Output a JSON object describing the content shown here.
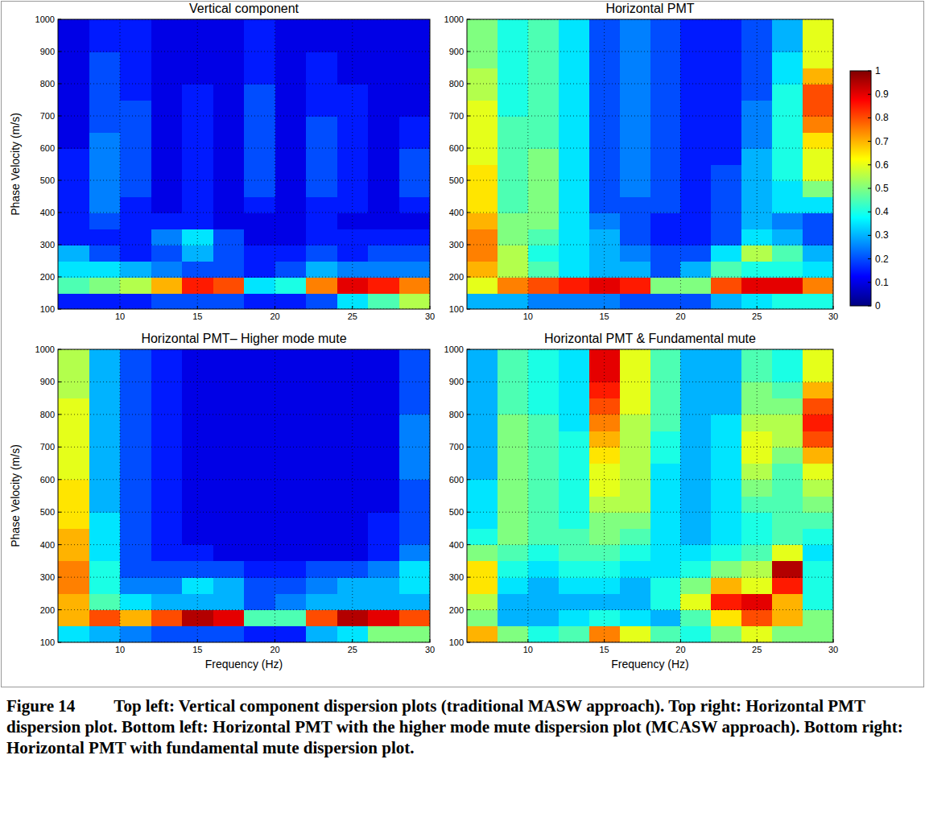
{
  "chart_data": [
    {
      "type": "heatmap",
      "title": "Vertical component",
      "y_label": "Phase Velocity (m/s)",
      "xlim": [
        6,
        30
      ],
      "ylim": [
        100,
        1000
      ],
      "xticks": [
        10,
        15,
        20,
        25,
        30
      ],
      "yticks": [
        100,
        200,
        300,
        400,
        500,
        600,
        700,
        800,
        900,
        1000
      ],
      "grid": true,
      "x_bins": [
        6,
        8,
        10,
        12,
        14,
        16,
        18,
        20,
        22,
        24,
        26,
        28,
        30
      ],
      "y_bins": [
        100,
        150,
        200,
        250,
        300,
        350,
        400,
        450,
        500,
        550,
        600,
        650,
        700,
        750,
        800,
        850,
        900,
        950,
        1000
      ],
      "cells": [
        [
          0.15,
          0.15,
          0.15,
          0.2,
          0.2,
          0.2,
          0.15,
          0.15,
          0.2,
          0.35,
          0.45,
          0.55
        ],
        [
          0.45,
          0.5,
          0.55,
          0.7,
          0.85,
          0.8,
          0.35,
          0.4,
          0.75,
          0.9,
          0.85,
          0.75
        ],
        [
          0.35,
          0.35,
          0.3,
          0.25,
          0.2,
          0.2,
          0.15,
          0.2,
          0.3,
          0.25,
          0.25,
          0.25
        ],
        [
          0.3,
          0.2,
          0.15,
          0.2,
          0.3,
          0.2,
          0.15,
          0.15,
          0.2,
          0.15,
          0.2,
          0.2
        ],
        [
          0.15,
          0.15,
          0.15,
          0.25,
          0.35,
          0.2,
          0.1,
          0.1,
          0.15,
          0.15,
          0.15,
          0.15
        ],
        [
          0.15,
          0.2,
          0.15,
          0.15,
          0.15,
          0.1,
          0.1,
          0.1,
          0.15,
          0.1,
          0.1,
          0.1
        ],
        [
          0.15,
          0.25,
          0.15,
          0.1,
          0.15,
          0.1,
          0.15,
          0.1,
          0.15,
          0.15,
          0.1,
          0.15
        ],
        [
          0.15,
          0.25,
          0.2,
          0.1,
          0.15,
          0.1,
          0.2,
          0.1,
          0.2,
          0.15,
          0.1,
          0.2
        ],
        [
          0.15,
          0.25,
          0.2,
          0.1,
          0.15,
          0.1,
          0.2,
          0.1,
          0.2,
          0.15,
          0.1,
          0.2
        ],
        [
          0.15,
          0.25,
          0.2,
          0.1,
          0.15,
          0.1,
          0.2,
          0.1,
          0.2,
          0.15,
          0.1,
          0.2
        ],
        [
          0.1,
          0.25,
          0.2,
          0.1,
          0.15,
          0.1,
          0.2,
          0.1,
          0.2,
          0.15,
          0.1,
          0.15
        ],
        [
          0.1,
          0.2,
          0.2,
          0.1,
          0.15,
          0.1,
          0.2,
          0.1,
          0.2,
          0.15,
          0.1,
          0.15
        ],
        [
          0.1,
          0.2,
          0.2,
          0.1,
          0.15,
          0.1,
          0.2,
          0.1,
          0.15,
          0.15,
          0.1,
          0.1
        ],
        [
          0.1,
          0.2,
          0.15,
          0.1,
          0.15,
          0.1,
          0.2,
          0.1,
          0.15,
          0.15,
          0.1,
          0.1
        ],
        [
          0.1,
          0.2,
          0.15,
          0.1,
          0.1,
          0.1,
          0.15,
          0.1,
          0.15,
          0.1,
          0.1,
          0.1
        ],
        [
          0.1,
          0.2,
          0.15,
          0.1,
          0.1,
          0.1,
          0.15,
          0.1,
          0.15,
          0.1,
          0.1,
          0.1
        ],
        [
          0.1,
          0.15,
          0.15,
          0.1,
          0.1,
          0.1,
          0.15,
          0.1,
          0.1,
          0.1,
          0.1,
          0.1
        ],
        [
          0.1,
          0.15,
          0.15,
          0.1,
          0.1,
          0.1,
          0.15,
          0.1,
          0.1,
          0.1,
          0.1,
          0.1
        ]
      ]
    },
    {
      "type": "heatmap",
      "title": "Horizontal PMT",
      "xlim": [
        6,
        30
      ],
      "ylim": [
        100,
        1000
      ],
      "xticks": [
        10,
        15,
        20,
        25,
        30
      ],
      "yticks": [
        100,
        200,
        300,
        400,
        500,
        600,
        700,
        800,
        900,
        1000
      ],
      "grid": true,
      "x_bins": [
        6,
        8,
        10,
        12,
        14,
        16,
        18,
        20,
        22,
        24,
        26,
        28,
        30
      ],
      "y_bins": [
        100,
        150,
        200,
        250,
        300,
        350,
        400,
        450,
        500,
        550,
        600,
        650,
        700,
        750,
        800,
        850,
        900,
        950,
        1000
      ],
      "colorbar": {
        "range": [
          0,
          1
        ],
        "ticks": [
          0,
          0.1,
          0.2,
          0.3,
          0.4,
          0.5,
          0.6,
          0.7,
          0.8,
          0.9,
          1
        ]
      },
      "cells": [
        [
          0.3,
          0.3,
          0.25,
          0.25,
          0.25,
          0.2,
          0.2,
          0.2,
          0.3,
          0.35,
          0.4,
          0.4
        ],
        [
          0.6,
          0.75,
          0.8,
          0.85,
          0.9,
          0.85,
          0.5,
          0.5,
          0.8,
          0.9,
          0.9,
          0.75
        ],
        [
          0.7,
          0.55,
          0.45,
          0.35,
          0.3,
          0.3,
          0.2,
          0.3,
          0.45,
          0.4,
          0.4,
          0.35
        ],
        [
          0.75,
          0.55,
          0.4,
          0.35,
          0.3,
          0.25,
          0.2,
          0.2,
          0.35,
          0.55,
          0.45,
          0.3
        ],
        [
          0.75,
          0.5,
          0.45,
          0.35,
          0.3,
          0.2,
          0.15,
          0.15,
          0.2,
          0.35,
          0.3,
          0.2
        ],
        [
          0.7,
          0.5,
          0.5,
          0.35,
          0.25,
          0.2,
          0.15,
          0.15,
          0.2,
          0.3,
          0.25,
          0.2
        ],
        [
          0.65,
          0.45,
          0.5,
          0.35,
          0.2,
          0.2,
          0.2,
          0.15,
          0.2,
          0.3,
          0.35,
          0.35
        ],
        [
          0.65,
          0.45,
          0.5,
          0.35,
          0.2,
          0.25,
          0.2,
          0.15,
          0.2,
          0.3,
          0.35,
          0.5
        ],
        [
          0.65,
          0.45,
          0.5,
          0.35,
          0.2,
          0.25,
          0.2,
          0.15,
          0.2,
          0.3,
          0.4,
          0.6
        ],
        [
          0.6,
          0.45,
          0.5,
          0.35,
          0.2,
          0.25,
          0.2,
          0.15,
          0.15,
          0.3,
          0.4,
          0.6
        ],
        [
          0.6,
          0.45,
          0.45,
          0.35,
          0.2,
          0.25,
          0.2,
          0.15,
          0.15,
          0.25,
          0.4,
          0.65
        ],
        [
          0.6,
          0.45,
          0.45,
          0.35,
          0.2,
          0.25,
          0.2,
          0.15,
          0.15,
          0.25,
          0.4,
          0.75
        ],
        [
          0.6,
          0.4,
          0.45,
          0.35,
          0.2,
          0.25,
          0.2,
          0.15,
          0.15,
          0.25,
          0.4,
          0.8
        ],
        [
          0.55,
          0.4,
          0.45,
          0.35,
          0.2,
          0.25,
          0.2,
          0.15,
          0.15,
          0.2,
          0.4,
          0.8
        ],
        [
          0.55,
          0.4,
          0.45,
          0.35,
          0.2,
          0.25,
          0.2,
          0.15,
          0.15,
          0.2,
          0.35,
          0.7
        ],
        [
          0.5,
          0.4,
          0.45,
          0.35,
          0.2,
          0.25,
          0.2,
          0.15,
          0.15,
          0.2,
          0.35,
          0.6
        ],
        [
          0.5,
          0.4,
          0.45,
          0.35,
          0.2,
          0.25,
          0.2,
          0.15,
          0.15,
          0.2,
          0.3,
          0.6
        ],
        [
          0.5,
          0.4,
          0.45,
          0.35,
          0.2,
          0.25,
          0.2,
          0.15,
          0.15,
          0.2,
          0.3,
          0.6
        ]
      ]
    },
    {
      "type": "heatmap",
      "title": "Horizontal PMT– Higher mode mute",
      "x_label": "Frequency (Hz)",
      "y_label": "Phase Velocity (m/s)",
      "xlim": [
        6,
        30
      ],
      "ylim": [
        100,
        1000
      ],
      "xticks": [
        10,
        15,
        20,
        25,
        30
      ],
      "yticks": [
        100,
        200,
        300,
        400,
        500,
        600,
        700,
        800,
        900,
        1000
      ],
      "grid": true,
      "x_bins": [
        6,
        8,
        10,
        12,
        14,
        16,
        18,
        20,
        22,
        24,
        26,
        28,
        30
      ],
      "y_bins": [
        100,
        150,
        200,
        250,
        300,
        350,
        400,
        450,
        500,
        550,
        600,
        650,
        700,
        750,
        800,
        850,
        900,
        950,
        1000
      ],
      "cells": [
        [
          0.35,
          0.3,
          0.25,
          0.2,
          0.2,
          0.2,
          0.15,
          0.15,
          0.3,
          0.35,
          0.5,
          0.5
        ],
        [
          0.7,
          0.8,
          0.7,
          0.8,
          0.95,
          0.9,
          0.45,
          0.45,
          0.8,
          0.95,
          0.9,
          0.8
        ],
        [
          0.7,
          0.45,
          0.35,
          0.3,
          0.3,
          0.3,
          0.2,
          0.25,
          0.3,
          0.3,
          0.3,
          0.3
        ],
        [
          0.75,
          0.4,
          0.25,
          0.25,
          0.35,
          0.3,
          0.2,
          0.2,
          0.25,
          0.3,
          0.3,
          0.35
        ],
        [
          0.75,
          0.4,
          0.2,
          0.2,
          0.2,
          0.2,
          0.15,
          0.15,
          0.2,
          0.2,
          0.25,
          0.35
        ],
        [
          0.7,
          0.35,
          0.2,
          0.15,
          0.15,
          0.1,
          0.1,
          0.1,
          0.1,
          0.1,
          0.15,
          0.25
        ],
        [
          0.7,
          0.35,
          0.2,
          0.15,
          0.1,
          0.1,
          0.1,
          0.1,
          0.1,
          0.1,
          0.15,
          0.2
        ],
        [
          0.65,
          0.35,
          0.2,
          0.15,
          0.1,
          0.1,
          0.1,
          0.1,
          0.1,
          0.1,
          0.15,
          0.2
        ],
        [
          0.65,
          0.3,
          0.2,
          0.15,
          0.1,
          0.1,
          0.1,
          0.1,
          0.1,
          0.1,
          0.1,
          0.2
        ],
        [
          0.65,
          0.3,
          0.2,
          0.15,
          0.1,
          0.1,
          0.1,
          0.1,
          0.1,
          0.1,
          0.1,
          0.2
        ],
        [
          0.6,
          0.3,
          0.2,
          0.15,
          0.1,
          0.1,
          0.1,
          0.1,
          0.1,
          0.1,
          0.1,
          0.25
        ],
        [
          0.6,
          0.3,
          0.2,
          0.15,
          0.1,
          0.1,
          0.1,
          0.1,
          0.1,
          0.1,
          0.1,
          0.25
        ],
        [
          0.6,
          0.3,
          0.2,
          0.15,
          0.1,
          0.1,
          0.1,
          0.1,
          0.1,
          0.1,
          0.1,
          0.25
        ],
        [
          0.6,
          0.3,
          0.2,
          0.15,
          0.1,
          0.1,
          0.1,
          0.1,
          0.1,
          0.1,
          0.1,
          0.25
        ],
        [
          0.6,
          0.3,
          0.2,
          0.15,
          0.1,
          0.1,
          0.1,
          0.1,
          0.1,
          0.1,
          0.1,
          0.2
        ],
        [
          0.55,
          0.3,
          0.2,
          0.15,
          0.1,
          0.1,
          0.1,
          0.1,
          0.1,
          0.1,
          0.1,
          0.2
        ],
        [
          0.55,
          0.3,
          0.2,
          0.15,
          0.1,
          0.1,
          0.1,
          0.1,
          0.1,
          0.1,
          0.1,
          0.2
        ],
        [
          0.55,
          0.3,
          0.2,
          0.15,
          0.1,
          0.1,
          0.1,
          0.1,
          0.1,
          0.1,
          0.1,
          0.2
        ]
      ]
    },
    {
      "type": "heatmap",
      "title": "Horizontal PMT & Fundamental mute",
      "x_label": "Frequency (Hz)",
      "xlim": [
        6,
        30
      ],
      "ylim": [
        100,
        1000
      ],
      "xticks": [
        10,
        15,
        20,
        25,
        30
      ],
      "yticks": [
        100,
        200,
        300,
        400,
        500,
        600,
        700,
        800,
        900,
        1000
      ],
      "grid": true,
      "x_bins": [
        6,
        8,
        10,
        12,
        14,
        16,
        18,
        20,
        22,
        24,
        26,
        28,
        30
      ],
      "y_bins": [
        100,
        150,
        200,
        250,
        300,
        350,
        400,
        450,
        500,
        550,
        600,
        650,
        700,
        750,
        800,
        850,
        900,
        950,
        1000
      ],
      "cells": [
        [
          0.7,
          0.5,
          0.4,
          0.45,
          0.75,
          0.6,
          0.45,
          0.4,
          0.5,
          0.6,
          0.5,
          0.5
        ],
        [
          0.5,
          0.3,
          0.3,
          0.35,
          0.4,
          0.35,
          0.3,
          0.45,
          0.65,
          0.8,
          0.7,
          0.5
        ],
        [
          0.55,
          0.3,
          0.3,
          0.3,
          0.3,
          0.3,
          0.4,
          0.6,
          0.85,
          0.9,
          0.7,
          0.4
        ],
        [
          0.65,
          0.35,
          0.3,
          0.35,
          0.35,
          0.3,
          0.4,
          0.5,
          0.7,
          0.6,
          0.85,
          0.4
        ],
        [
          0.65,
          0.4,
          0.35,
          0.4,
          0.4,
          0.35,
          0.35,
          0.4,
          0.5,
          0.55,
          0.95,
          0.4
        ],
        [
          0.5,
          0.45,
          0.4,
          0.45,
          0.45,
          0.4,
          0.35,
          0.35,
          0.4,
          0.45,
          0.6,
          0.35
        ],
        [
          0.4,
          0.5,
          0.45,
          0.45,
          0.5,
          0.45,
          0.35,
          0.3,
          0.35,
          0.4,
          0.45,
          0.4
        ],
        [
          0.35,
          0.5,
          0.45,
          0.4,
          0.5,
          0.5,
          0.35,
          0.3,
          0.35,
          0.4,
          0.45,
          0.45
        ],
        [
          0.35,
          0.5,
          0.45,
          0.4,
          0.55,
          0.55,
          0.35,
          0.3,
          0.35,
          0.45,
          0.45,
          0.5
        ],
        [
          0.35,
          0.5,
          0.45,
          0.4,
          0.6,
          0.55,
          0.35,
          0.3,
          0.35,
          0.5,
          0.45,
          0.55
        ],
        [
          0.3,
          0.5,
          0.45,
          0.4,
          0.6,
          0.55,
          0.35,
          0.3,
          0.35,
          0.55,
          0.45,
          0.6
        ],
        [
          0.3,
          0.5,
          0.45,
          0.4,
          0.65,
          0.55,
          0.4,
          0.3,
          0.35,
          0.6,
          0.5,
          0.7
        ],
        [
          0.3,
          0.5,
          0.45,
          0.4,
          0.7,
          0.55,
          0.4,
          0.3,
          0.35,
          0.6,
          0.55,
          0.8
        ],
        [
          0.3,
          0.5,
          0.45,
          0.35,
          0.75,
          0.55,
          0.45,
          0.3,
          0.35,
          0.55,
          0.55,
          0.85
        ],
        [
          0.3,
          0.45,
          0.4,
          0.35,
          0.8,
          0.6,
          0.45,
          0.3,
          0.3,
          0.5,
          0.5,
          0.8
        ],
        [
          0.3,
          0.45,
          0.4,
          0.35,
          0.85,
          0.6,
          0.45,
          0.3,
          0.3,
          0.5,
          0.45,
          0.7
        ],
        [
          0.3,
          0.45,
          0.4,
          0.35,
          0.9,
          0.6,
          0.45,
          0.3,
          0.3,
          0.45,
          0.4,
          0.6
        ],
        [
          0.3,
          0.45,
          0.4,
          0.35,
          0.9,
          0.6,
          0.45,
          0.3,
          0.3,
          0.45,
          0.4,
          0.6
        ]
      ]
    }
  ],
  "figure_label": "Figure 14",
  "caption": "Top left: Vertical component dispersion plots (traditional MASW approach). Top right: Horizontal PMT dispersion plot. Bottom left: Horizontal PMT with the higher mode mute dispersion plot (MCASW approach). Bottom right: Horizontal PMT with fundamental mute dispersion plot."
}
